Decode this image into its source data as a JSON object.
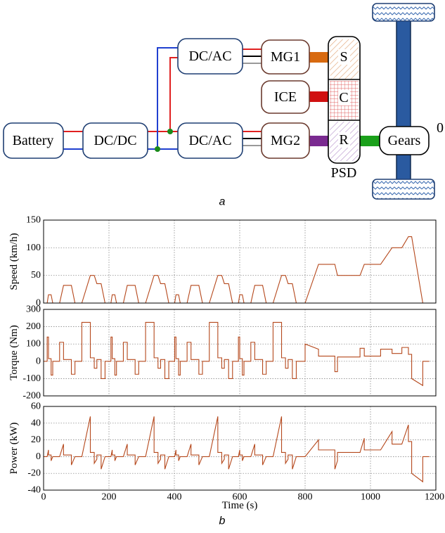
{
  "diagram": {
    "nodes": {
      "battery": "Battery",
      "dcdc": "DC/DC",
      "dcac_top": "DC/AC",
      "dcac_bottom": "DC/AC",
      "mg1": "MG1",
      "ice": "ICE",
      "mg2": "MG2",
      "sun": "S",
      "carrier": "C",
      "ring": "R",
      "psd": "PSD",
      "gears": "Gears"
    },
    "side_label": "0",
    "caption": "a"
  },
  "figure_b_caption": "b",
  "chart_data": [
    {
      "type": "line",
      "ylabel": "Speed (km/h)",
      "color": "#b5481c",
      "grid": true,
      "xlim": [
        0,
        1200
      ],
      "xticks": [
        0,
        200,
        400,
        600,
        800,
        1000,
        1200
      ],
      "ylim": [
        0,
        150
      ],
      "yticks": [
        0,
        50,
        100,
        150
      ],
      "x": [
        0,
        11,
        15,
        23,
        28,
        49,
        61,
        85,
        96,
        117,
        143,
        155,
        163,
        176,
        188,
        195,
        206,
        210,
        218,
        223,
        244,
        256,
        280,
        291,
        312,
        338,
        350,
        358,
        371,
        383,
        390,
        401,
        405,
        413,
        418,
        439,
        451,
        475,
        486,
        507,
        533,
        545,
        553,
        566,
        578,
        585,
        596,
        600,
        608,
        613,
        634,
        646,
        670,
        681,
        702,
        728,
        740,
        748,
        761,
        773,
        780,
        800,
        841,
        891,
        899,
        968,
        981,
        1031,
        1066,
        1096,
        1116,
        1126,
        1160,
        1180
      ],
      "values": [
        0,
        0,
        15,
        15,
        0,
        0,
        32,
        32,
        0,
        0,
        50,
        50,
        35,
        35,
        0,
        0,
        0,
        15,
        15,
        0,
        0,
        32,
        32,
        0,
        0,
        50,
        50,
        35,
        35,
        0,
        0,
        0,
        15,
        15,
        0,
        0,
        32,
        32,
        0,
        0,
        50,
        50,
        35,
        35,
        0,
        0,
        0,
        15,
        15,
        0,
        0,
        32,
        32,
        0,
        0,
        50,
        50,
        35,
        35,
        0,
        0,
        0,
        70,
        70,
        50,
        50,
        70,
        70,
        100,
        100,
        120,
        120,
        0,
        0
      ]
    },
    {
      "type": "line",
      "ylabel": "Torque (Nm)",
      "color": "#b5481c",
      "grid": true,
      "xlim": [
        0,
        1200
      ],
      "xticks": [
        0,
        200,
        400,
        600,
        800,
        1000,
        1200
      ],
      "ylim": [
        -200,
        300
      ],
      "yticks": [
        -200,
        -100,
        0,
        100,
        200,
        300
      ],
      "x": [
        0,
        11,
        11,
        15,
        15,
        23,
        23,
        28,
        28,
        49,
        49,
        61,
        61,
        85,
        85,
        96,
        96,
        117,
        117,
        143,
        143,
        155,
        155,
        163,
        163,
        176,
        176,
        188,
        188,
        195,
        206,
        206,
        210,
        210,
        218,
        218,
        223,
        223,
        244,
        244,
        256,
        256,
        280,
        280,
        291,
        291,
        312,
        312,
        338,
        338,
        350,
        350,
        358,
        358,
        371,
        371,
        383,
        383,
        390,
        401,
        401,
        405,
        405,
        413,
        413,
        418,
        418,
        439,
        439,
        451,
        451,
        475,
        475,
        486,
        486,
        507,
        507,
        533,
        533,
        545,
        545,
        553,
        553,
        566,
        566,
        578,
        578,
        585,
        596,
        596,
        600,
        600,
        608,
        608,
        613,
        613,
        634,
        634,
        646,
        646,
        670,
        670,
        681,
        681,
        702,
        702,
        728,
        728,
        740,
        740,
        748,
        748,
        761,
        761,
        773,
        773,
        780,
        800,
        800,
        841,
        841,
        891,
        891,
        899,
        899,
        968,
        968,
        981,
        981,
        1031,
        1031,
        1066,
        1066,
        1096,
        1096,
        1116,
        1116,
        1126,
        1126,
        1160,
        1160,
        1180
      ],
      "values": [
        0,
        0,
        140,
        140,
        15,
        15,
        -80,
        -80,
        0,
        0,
        110,
        110,
        10,
        10,
        -75,
        -75,
        0,
        0,
        225,
        225,
        20,
        20,
        -40,
        -40,
        10,
        10,
        -100,
        -100,
        0,
        0,
        0,
        140,
        140,
        15,
        15,
        -80,
        -80,
        0,
        0,
        110,
        110,
        10,
        10,
        -75,
        -75,
        0,
        0,
        225,
        225,
        20,
        20,
        -40,
        -40,
        10,
        10,
        -100,
        -100,
        0,
        0,
        0,
        140,
        140,
        15,
        15,
        -80,
        -80,
        0,
        0,
        110,
        110,
        10,
        10,
        -75,
        -75,
        0,
        0,
        225,
        225,
        20,
        20,
        -40,
        -40,
        10,
        10,
        -100,
        -100,
        0,
        0,
        0,
        140,
        140,
        15,
        15,
        -80,
        -80,
        0,
        0,
        110,
        110,
        10,
        10,
        -75,
        -75,
        0,
        0,
        225,
        225,
        20,
        20,
        -40,
        -40,
        10,
        10,
        -100,
        -100,
        0,
        0,
        0,
        100,
        70,
        30,
        30,
        -60,
        -60,
        25,
        25,
        75,
        75,
        30,
        30,
        70,
        70,
        45,
        45,
        80,
        80,
        40,
        40,
        -100,
        -140,
        0,
        0
      ]
    },
    {
      "type": "line",
      "ylabel": "Power (kW)",
      "xlabel": "Time (s)",
      "color": "#b5481c",
      "grid": true,
      "xlim": [
        0,
        1200
      ],
      "xticks": [
        0,
        200,
        400,
        600,
        800,
        1000,
        1200
      ],
      "ylim": [
        -40,
        60
      ],
      "yticks": [
        -40,
        -20,
        0,
        20,
        40,
        60
      ],
      "x": [
        0,
        11,
        15,
        15,
        23,
        23,
        28,
        49,
        61,
        61,
        85,
        85,
        96,
        117,
        143,
        143,
        155,
        155,
        163,
        163,
        176,
        176,
        188,
        195,
        206,
        210,
        210,
        218,
        218,
        223,
        244,
        256,
        256,
        280,
        280,
        291,
        312,
        338,
        338,
        350,
        350,
        358,
        358,
        371,
        371,
        383,
        390,
        401,
        405,
        405,
        413,
        413,
        418,
        439,
        451,
        451,
        475,
        475,
        486,
        507,
        533,
        533,
        545,
        545,
        553,
        553,
        566,
        566,
        578,
        585,
        596,
        600,
        600,
        608,
        608,
        613,
        634,
        646,
        646,
        670,
        670,
        681,
        702,
        728,
        728,
        740,
        740,
        748,
        748,
        761,
        761,
        773,
        780,
        800,
        841,
        841,
        891,
        891,
        899,
        899,
        968,
        981,
        981,
        1031,
        1066,
        1066,
        1096,
        1116,
        1116,
        1126,
        1126,
        1160,
        1160,
        1180
      ],
      "values": [
        0,
        0,
        8,
        2,
        2,
        -5,
        0,
        0,
        15,
        2,
        2,
        -10,
        0,
        0,
        48,
        5,
        5,
        -8,
        -3,
        2,
        2,
        -15,
        0,
        0,
        0,
        8,
        2,
        2,
        -5,
        0,
        0,
        15,
        2,
        2,
        -10,
        0,
        0,
        48,
        5,
        5,
        -8,
        -3,
        2,
        2,
        -15,
        0,
        0,
        0,
        8,
        2,
        2,
        -5,
        0,
        0,
        15,
        2,
        2,
        -10,
        0,
        0,
        48,
        5,
        5,
        -8,
        -3,
        2,
        2,
        -15,
        0,
        0,
        0,
        8,
        2,
        2,
        -5,
        0,
        0,
        15,
        2,
        2,
        -10,
        0,
        0,
        48,
        5,
        5,
        -8,
        -3,
        2,
        2,
        -15,
        0,
        0,
        0,
        20,
        8,
        8,
        -15,
        -5,
        5,
        5,
        22,
        8,
        8,
        30,
        15,
        15,
        38,
        18,
        18,
        -20,
        -30,
        0,
        0
      ]
    }
  ]
}
